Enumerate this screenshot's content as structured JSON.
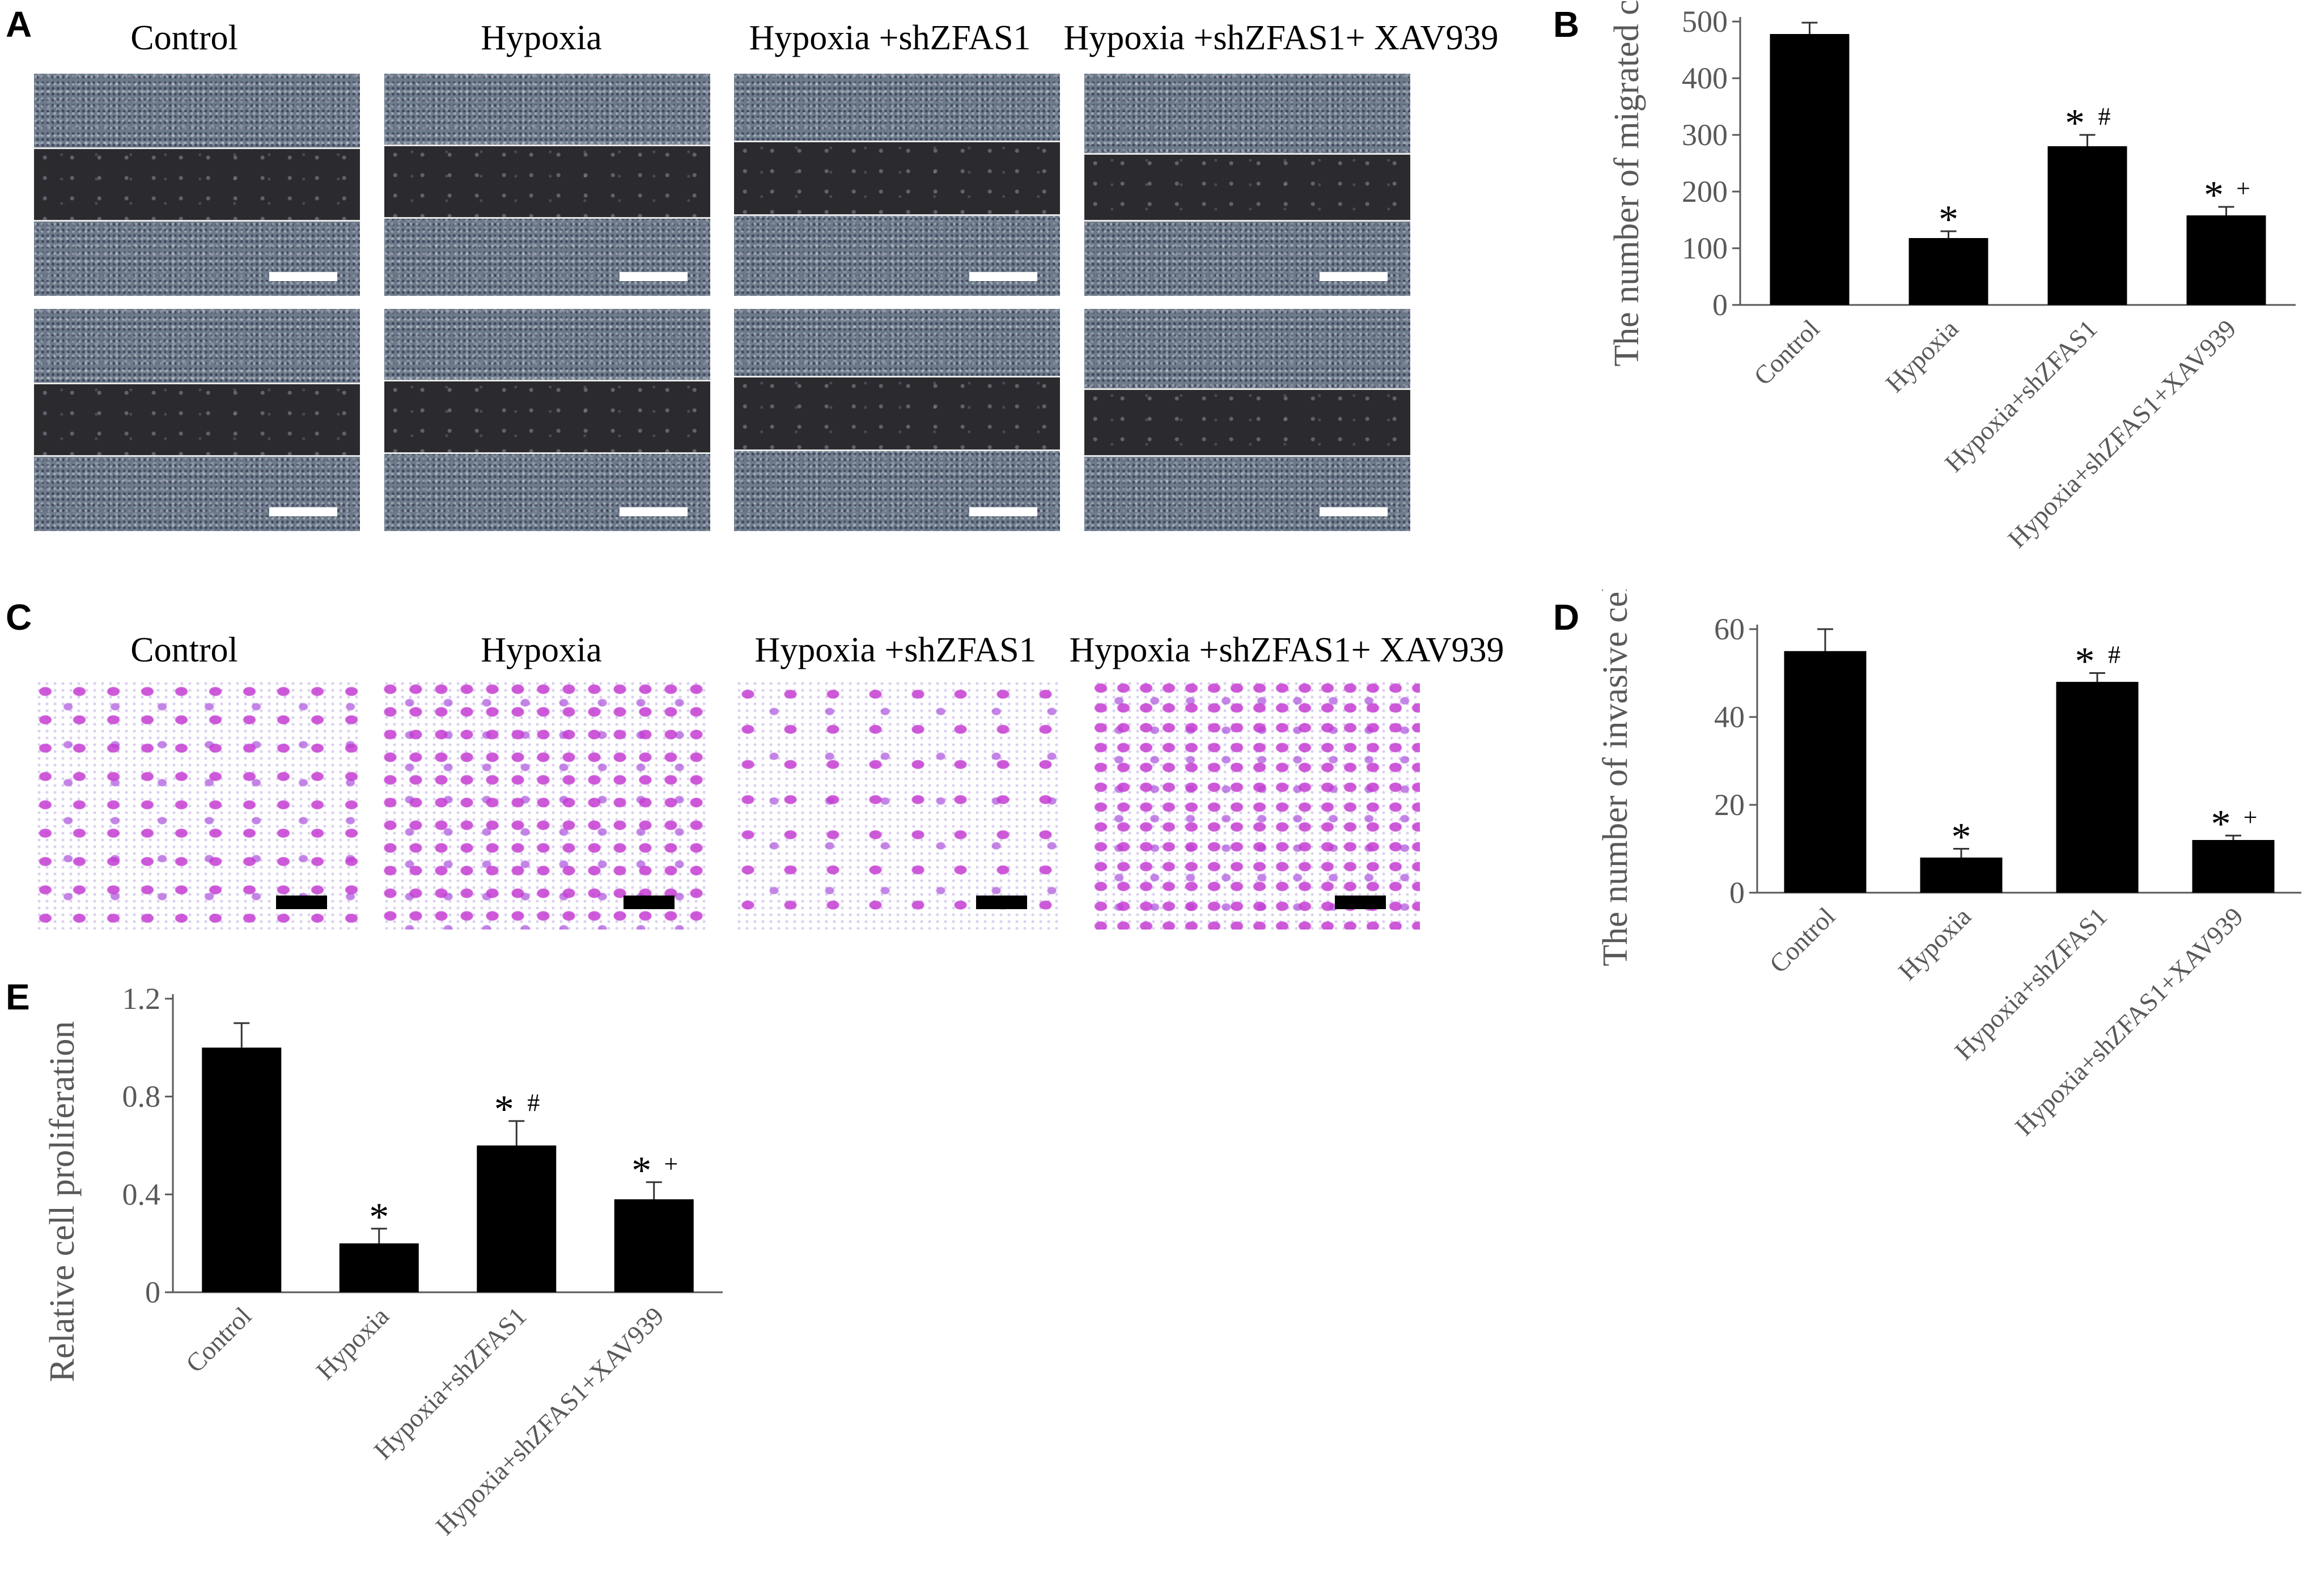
{
  "panels": {
    "A": {
      "letter": "A",
      "titles": [
        "Control",
        "Hypoxia",
        "Hypoxia +shZFAS1",
        "Hypoxia +shZFAS1+ XAV939"
      ]
    },
    "B": {
      "letter": "B"
    },
    "C": {
      "letter": "C",
      "titles": [
        "Control",
        "Hypoxia",
        "Hypoxia +shZFAS1",
        "Hypoxia +shZFAS1+ XAV939"
      ]
    },
    "D": {
      "letter": "D"
    },
    "E": {
      "letter": "E"
    }
  },
  "colors": {
    "bar": "#000000",
    "axis": "#595959",
    "tick_text": "#595959",
    "transwell_stain": "#c43cd2",
    "scratch_gap": "#2b2b2f"
  },
  "chart_data": [
    {
      "id": "B",
      "type": "bar",
      "categories": [
        "Control",
        "Hypoxia",
        "Hypoxia+shZFAS1",
        "Hypoxia+shZFAS1+XAV939"
      ],
      "values": [
        478,
        118,
        280,
        158
      ],
      "errors": [
        20,
        12,
        20,
        15
      ],
      "annotations": [
        [],
        [
          "*"
        ],
        [
          "*",
          "#"
        ],
        [
          "*",
          "+"
        ]
      ],
      "ylabel": "The number of migrated cells",
      "xlabel": "",
      "ylim": [
        0,
        500
      ],
      "yticks": [
        "0",
        "100",
        "200",
        "300",
        "400",
        "500"
      ],
      "grid": false,
      "legend": "none"
    },
    {
      "id": "D",
      "type": "bar",
      "categories": [
        "Control",
        "Hypoxia",
        "Hypoxia+shZFAS1",
        "Hypoxia+shZFAS1+XAV939"
      ],
      "values": [
        55,
        8,
        48,
        12
      ],
      "errors": [
        5,
        2,
        2,
        1
      ],
      "annotations": [
        [],
        [
          "*"
        ],
        [
          "*",
          "#"
        ],
        [
          "*",
          "+"
        ]
      ],
      "ylabel": "The number of invasive cells",
      "xlabel": "",
      "ylim": [
        0,
        60
      ],
      "yticks": [
        "0",
        "20",
        "40",
        "60"
      ],
      "grid": false,
      "legend": "none"
    },
    {
      "id": "E",
      "type": "bar",
      "categories": [
        "Control",
        "Hypoxia",
        "Hypoxia+shZFAS1",
        "Hypoxia+shZFAS1+XAV939"
      ],
      "values": [
        1.0,
        0.2,
        0.6,
        0.38
      ],
      "errors": [
        0.1,
        0.06,
        0.1,
        0.07
      ],
      "annotations": [
        [],
        [
          "*"
        ],
        [
          "*",
          "#"
        ],
        [
          "*",
          "+"
        ]
      ],
      "ylabel": "Relative cell proliferation",
      "xlabel": "",
      "ylim": [
        0,
        1.2
      ],
      "yticks": [
        "0",
        "0.4",
        "0.8",
        "1.2"
      ],
      "grid": false,
      "legend": "none"
    }
  ]
}
